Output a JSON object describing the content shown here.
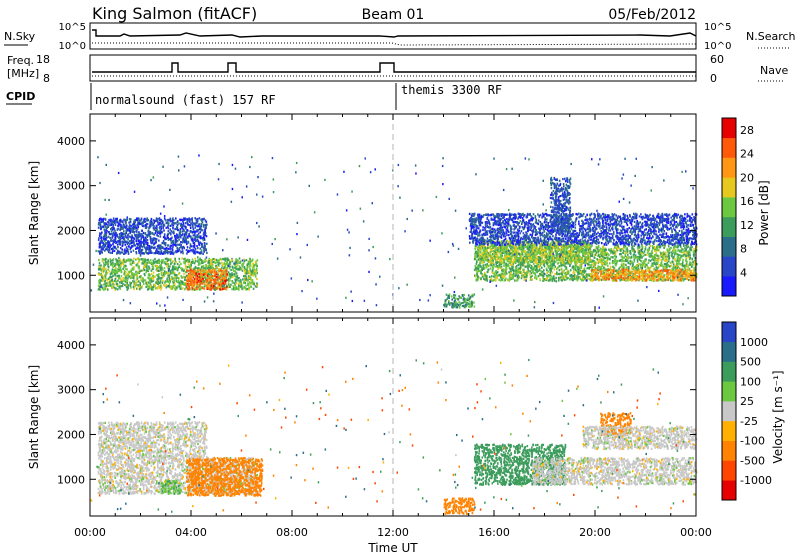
{
  "header": {
    "station": "King Salmon (fitACF)",
    "beam": "Beam 01",
    "date": "05/Feb/2012"
  },
  "nsky_panel": {
    "left_label": "N.Sky",
    "left_ticks": [
      "10^5",
      "10^0"
    ],
    "right_ticks": [
      "10^5",
      "10^0"
    ],
    "right_label": "N.Search"
  },
  "freq_panel": {
    "left_label_line1": "Freq.",
    "left_label_line2": "[MHz]",
    "left_ticks": [
      "18",
      "8"
    ],
    "right_ticks": [
      "60",
      "0"
    ],
    "right_label": "Nave"
  },
  "cpid_panel": {
    "label": "CPID",
    "modes": [
      {
        "name": "normalsound (fast) 157 RF",
        "start_hour": 0,
        "end_hour": 12
      },
      {
        "name": "themis 3300 RF",
        "start_hour": 12,
        "end_hour": 24
      }
    ]
  },
  "colors": {
    "power_scale": [
      "#1a1aff",
      "#2a46c8",
      "#2a6e8a",
      "#3c9c5c",
      "#6cc840",
      "#e6c81e",
      "#ff9614",
      "#ff5a0a",
      "#e60000"
    ],
    "velocity_scale": [
      "#2a46c8",
      "#2a6e8a",
      "#3c9c5c",
      "#6cc840",
      "#c8c8c8",
      "#ffb000",
      "#ff8200",
      "#ff4600",
      "#e60000"
    ],
    "axis": "#000000",
    "noon_line": "#b4b4b4"
  },
  "chart_data": [
    {
      "type": "heatmap",
      "name": "power",
      "ylabel": "Slant Range [km]",
      "xlabel": "",
      "x_ticks": [],
      "y_ticks": [
        "1000",
        "2000",
        "3000",
        "4000"
      ],
      "xlim": [
        0,
        24
      ],
      "ylim": [
        180,
        4600
      ],
      "colorbar": {
        "label": "Power [dB]",
        "ticks": [
          "4",
          "8",
          "12",
          "16",
          "20",
          "24",
          "28"
        ],
        "range": [
          0,
          30
        ]
      },
      "grid": false,
      "regions": [
        {
          "t0": 0.3,
          "t1": 6.6,
          "r0": 700,
          "r1": 1400,
          "value": 14
        },
        {
          "t0": 3.8,
          "t1": 5.4,
          "r0": 700,
          "r1": 1150,
          "value": 24
        },
        {
          "t0": 0.3,
          "t1": 4.6,
          "r0": 1500,
          "r1": 2300,
          "value": 5
        },
        {
          "t0": 15.2,
          "t1": 24.0,
          "r0": 900,
          "r1": 1700,
          "value": 14
        },
        {
          "t0": 19.8,
          "t1": 24.0,
          "r0": 900,
          "r1": 1150,
          "value": 22
        },
        {
          "t0": 15.4,
          "t1": 19.8,
          "r0": 1300,
          "r1": 1800,
          "value": 16
        },
        {
          "t0": 15.0,
          "t1": 24.0,
          "r0": 1700,
          "r1": 2400,
          "value": 5
        },
        {
          "t0": 14.0,
          "t1": 15.2,
          "r0": 300,
          "r1": 600,
          "value": 12
        },
        {
          "t0": 18.2,
          "t1": 19.0,
          "r0": 2000,
          "r1": 3200,
          "value": 6
        }
      ]
    },
    {
      "type": "heatmap",
      "name": "velocity",
      "ylabel": "Slant Range [km]",
      "xlabel": "Time UT",
      "x_ticks": [
        "00:00",
        "04:00",
        "08:00",
        "12:00",
        "16:00",
        "20:00",
        "00:00"
      ],
      "y_ticks": [
        "1000",
        "2000",
        "3000",
        "4000"
      ],
      "xlim": [
        0,
        24
      ],
      "ylim": [
        180,
        4600
      ],
      "colorbar": {
        "label": "Velocity [m s⁻¹]",
        "ticks": [
          "1000",
          "500",
          "100",
          "25",
          "-25",
          "-100",
          "-500",
          "-1000"
        ]
      },
      "grid": false,
      "regions": [
        {
          "t0": 0.3,
          "t1": 6.6,
          "r0": 700,
          "r1": 1500,
          "value": 0
        },
        {
          "t0": 3.8,
          "t1": 6.8,
          "r0": 650,
          "r1": 1500,
          "value": -200
        },
        {
          "t0": 0.3,
          "t1": 4.6,
          "r0": 1500,
          "r1": 2300,
          "value": 0
        },
        {
          "t0": 2.8,
          "t1": 3.6,
          "r0": 700,
          "r1": 1000,
          "value": 80
        },
        {
          "t0": 15.2,
          "t1": 18.8,
          "r0": 900,
          "r1": 1800,
          "value": 300
        },
        {
          "t0": 17.5,
          "t1": 24.0,
          "r0": 900,
          "r1": 1500,
          "value": 0
        },
        {
          "t0": 14.0,
          "t1": 15.2,
          "r0": 250,
          "r1": 600,
          "value": -150
        },
        {
          "t0": 20.2,
          "t1": 21.4,
          "r0": 2000,
          "r1": 2500,
          "value": -400
        },
        {
          "t0": 19.5,
          "t1": 24.0,
          "r0": 1700,
          "r1": 2200,
          "value": 0
        }
      ]
    }
  ]
}
